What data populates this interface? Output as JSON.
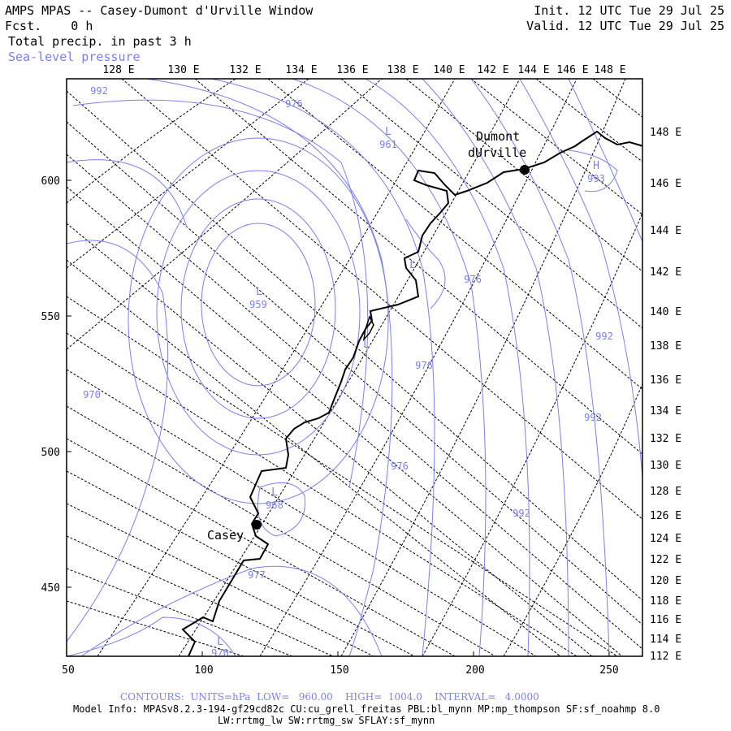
{
  "header": {
    "title": "AMPS MPAS -- Casey-Dumont d'Urville Window",
    "fcst_label": "Fcst.",
    "fcst_value": "0 h",
    "field1": "Total precip. in past 3 h",
    "field2": "Sea-level pressure",
    "init_label": "Init.",
    "init_value": "12 UTC Tue 29 Jul 25",
    "valid_label": "Valid.",
    "valid_value": "12 UTC Tue 29 Jul 25"
  },
  "map": {
    "top_lon_labels": [
      "128 E",
      "130 E",
      "132 E",
      "134 E",
      "136 E",
      "138 E",
      "140 E",
      "142 E",
      "144 E",
      "146 E",
      "148 E"
    ],
    "right_lon_labels": [
      "148 E",
      "146 E",
      "144 E",
      "142 E",
      "140 E",
      "138 E",
      "136 E",
      "134 E",
      "132 E",
      "130 E",
      "128 E",
      "126 E",
      "124 E",
      "122 E",
      "120 E",
      "118 E",
      "116 E",
      "114 E",
      "112 E"
    ],
    "left_axis_labels": [
      "600",
      "550",
      "500",
      "450"
    ],
    "bottom_axis_labels": [
      "50",
      "100",
      "150",
      "200",
      "250"
    ],
    "stations": [
      {
        "name": "Casey"
      },
      {
        "name_line1": "Dumont",
        "name_line2": "dUrville"
      }
    ],
    "contour_labels": [
      "992",
      "976",
      "961",
      "959",
      "976",
      "976",
      "977",
      "970",
      "976",
      "968",
      "992",
      "992",
      "992",
      "993",
      "970"
    ],
    "low_labels": [
      "L",
      "L",
      "L",
      "L",
      "L",
      "L"
    ],
    "high_labels": [
      "H"
    ],
    "colors": {
      "contour": "#7b7ff0",
      "coast": "#000000",
      "grid": "#000000",
      "background": "#ffffff"
    }
  },
  "footer": {
    "contours": "CONTOURS:  UNITS=hPa  LOW=   960.00    HIGH=  1004.0    INTERVAL=   4.0000",
    "model_info": "Model Info: MPASv8.2.3-194-gf29cd82c CU:cu_grell_freitas PBL:bl_mynn MP:mp_thompson SF:sf_noahmp 8.0",
    "model_info2": "LW:rrtmg_lw SW:rrtmg_sw SFLAY:sf_mynn"
  }
}
